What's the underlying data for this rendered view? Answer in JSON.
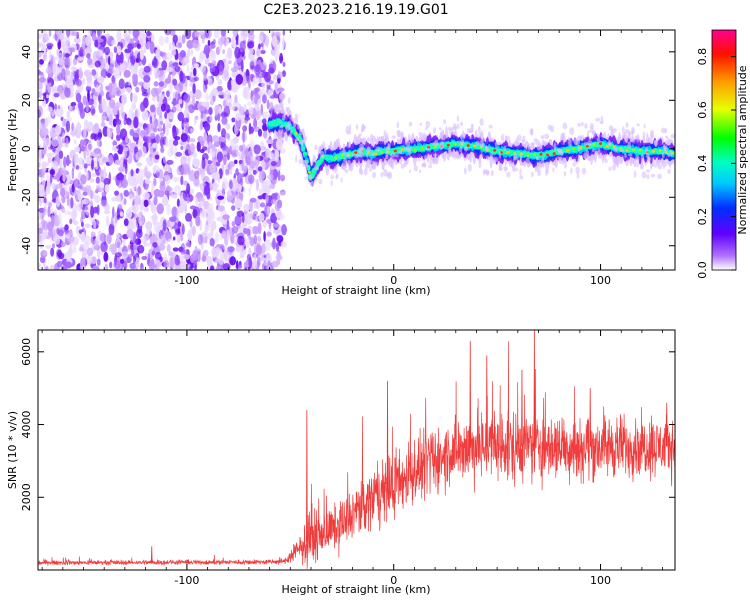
{
  "title": "C2E3.2023.216.19.19.G01",
  "chart_data": [
    {
      "type": "heatmap",
      "xlabel": "Height of straight line (km)",
      "ylabel": "Frequency (Hz)",
      "xlim": [
        -172,
        136
      ],
      "ylim": [
        -50,
        49
      ],
      "xticks": [
        -100,
        0,
        100
      ],
      "yticks": [
        -40,
        -20,
        0,
        20,
        40
      ],
      "noise_region_x": [
        -172,
        -53
      ],
      "signal_track": {
        "x": [
          -60,
          -55,
          -50,
          -45,
          -42,
          -40,
          -37,
          -34,
          -30,
          -25,
          -20,
          -15,
          -10,
          -5,
          0,
          10,
          20,
          30,
          40,
          50,
          60,
          70,
          80,
          90,
          100,
          110,
          120,
          130,
          136
        ],
        "y": [
          10,
          11,
          9,
          4,
          -5,
          -12,
          -7,
          -3,
          -4,
          -3,
          -2,
          -1,
          -2,
          -1,
          -1,
          0,
          1,
          2,
          1,
          -1,
          -2,
          -3,
          -1,
          0,
          2,
          0,
          -1,
          -1,
          -2
        ]
      },
      "colorbar": {
        "label": "Normalized spectral amplitude",
        "ticks": [
          "0.0",
          "0.2",
          "0.4",
          "0.6",
          "0.8"
        ],
        "range": [
          0,
          0.9
        ]
      }
    },
    {
      "type": "line",
      "xlabel": "Height of straight line (km)",
      "ylabel": "SNR (10 * v/v)",
      "xlim": [
        -172,
        136
      ],
      "ylim": [
        0,
        6600
      ],
      "xticks": [
        -100,
        0,
        100
      ],
      "yticks": [
        2000,
        4000,
        6000
      ],
      "color": "#ee3333",
      "envelope": {
        "x": [
          -172,
          -60,
          -53,
          -45,
          -40,
          -35,
          -30,
          -20,
          -10,
          0,
          10,
          20,
          30,
          40,
          60,
          80,
          100,
          120,
          136
        ],
        "mean": [
          200,
          220,
          230,
          600,
          900,
          1000,
          1100,
          1500,
          2000,
          2300,
          2700,
          3000,
          3300,
          3400,
          3400,
          3400,
          3400,
          3400,
          3400
        ],
        "spread": [
          60,
          70,
          80,
          400,
          700,
          600,
          600,
          700,
          800,
          900,
          900,
          900,
          900,
          1000,
          1000,
          900,
          900,
          800,
          800
        ]
      },
      "peaks": [
        [
          -117,
          650
        ],
        [
          -42,
          4400
        ],
        [
          -3,
          5200
        ],
        [
          37,
          6300
        ],
        [
          45,
          5900
        ],
        [
          62,
          5500
        ],
        [
          68,
          6600
        ],
        [
          95,
          5000
        ],
        [
          132,
          4600
        ]
      ]
    }
  ]
}
